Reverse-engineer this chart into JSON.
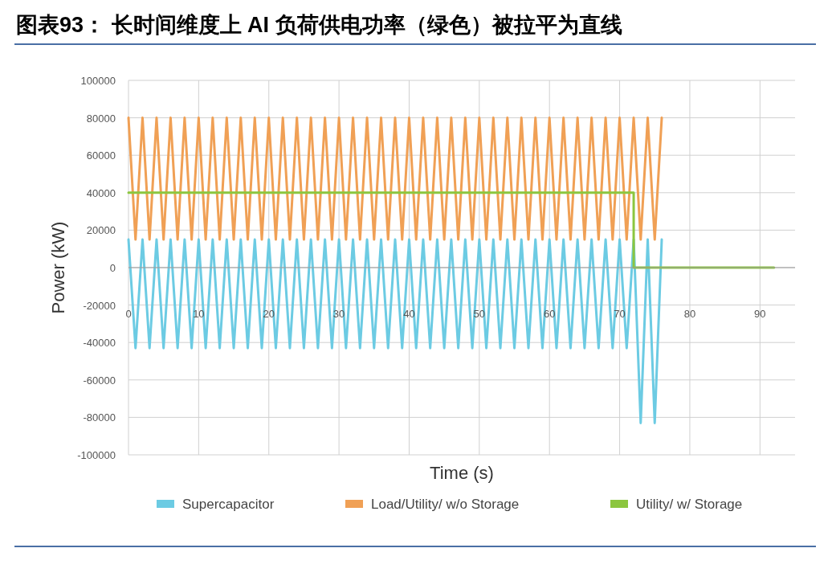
{
  "chart_data": {
    "type": "line",
    "title": "图表93：  长时间维度上 AI 负荷供电功率（绿色）被拉平为直线",
    "xlabel": "Time (s)",
    "ylabel": "Power (kW)",
    "xlim": [
      0,
      95
    ],
    "xticks": [
      0,
      10,
      20,
      30,
      40,
      50,
      60,
      70,
      80,
      90
    ],
    "ylim": [
      -100000,
      100000
    ],
    "yticks": [
      -100000,
      -80000,
      -60000,
      -40000,
      -20000,
      0,
      20000,
      40000,
      60000,
      80000,
      100000
    ],
    "grid": true,
    "legend": "bottom",
    "line_style": "solid",
    "marker": "none",
    "series": [
      {
        "name": "Supercapacitor",
        "color": "#6ccbe3",
        "x": [
          0,
          1,
          2,
          3,
          4,
          5,
          6,
          7,
          8,
          9,
          10,
          11,
          12,
          13,
          14,
          15,
          16,
          17,
          18,
          19,
          20,
          21,
          22,
          23,
          24,
          25,
          26,
          27,
          28,
          29,
          30,
          31,
          32,
          33,
          34,
          35,
          36,
          37,
          38,
          39,
          40,
          41,
          42,
          43,
          44,
          45,
          46,
          47,
          48,
          49,
          50,
          51,
          52,
          53,
          54,
          55,
          56,
          57,
          58,
          59,
          60,
          61,
          62,
          63,
          64,
          65,
          66,
          67,
          68,
          69,
          70,
          71,
          72,
          73,
          74,
          75,
          76
        ],
        "values": [
          15000,
          -43000,
          15000,
          -43000,
          15000,
          -43000,
          15000,
          -43000,
          15000,
          -43000,
          15000,
          -43000,
          15000,
          -43000,
          15000,
          -43000,
          15000,
          -43000,
          15000,
          -43000,
          15000,
          -43000,
          15000,
          -43000,
          15000,
          -43000,
          15000,
          -43000,
          15000,
          -43000,
          15000,
          -43000,
          15000,
          -43000,
          15000,
          -43000,
          15000,
          -43000,
          15000,
          -43000,
          15000,
          -43000,
          15000,
          -43000,
          15000,
          -43000,
          15000,
          -43000,
          15000,
          -43000,
          15000,
          -43000,
          15000,
          -43000,
          15000,
          -43000,
          15000,
          -43000,
          15000,
          -43000,
          15000,
          -43000,
          15000,
          -43000,
          15000,
          -43000,
          15000,
          -43000,
          15000,
          -43000,
          15000,
          -43000,
          15000,
          -83000,
          15000,
          -83000,
          15000
        ]
      },
      {
        "name": "Load/Utility/ w/o Storage",
        "color": "#f0a055",
        "x": [
          0,
          1,
          2,
          3,
          4,
          5,
          6,
          7,
          8,
          9,
          10,
          11,
          12,
          13,
          14,
          15,
          16,
          17,
          18,
          19,
          20,
          21,
          22,
          23,
          24,
          25,
          26,
          27,
          28,
          29,
          30,
          31,
          32,
          33,
          34,
          35,
          36,
          37,
          38,
          39,
          40,
          41,
          42,
          43,
          44,
          45,
          46,
          47,
          48,
          49,
          50,
          51,
          52,
          53,
          54,
          55,
          56,
          57,
          58,
          59,
          60,
          61,
          62,
          63,
          64,
          65,
          66,
          67,
          68,
          69,
          70,
          71,
          72,
          73,
          74,
          75,
          76
        ],
        "values": [
          80000,
          15000,
          80000,
          15000,
          80000,
          15000,
          80000,
          15000,
          80000,
          15000,
          80000,
          15000,
          80000,
          15000,
          80000,
          15000,
          80000,
          15000,
          80000,
          15000,
          80000,
          15000,
          80000,
          15000,
          80000,
          15000,
          80000,
          15000,
          80000,
          15000,
          80000,
          15000,
          80000,
          15000,
          80000,
          15000,
          80000,
          15000,
          80000,
          15000,
          80000,
          15000,
          80000,
          15000,
          80000,
          15000,
          80000,
          15000,
          80000,
          15000,
          80000,
          15000,
          80000,
          15000,
          80000,
          15000,
          80000,
          15000,
          80000,
          15000,
          80000,
          15000,
          80000,
          15000,
          80000,
          15000,
          80000,
          15000,
          80000,
          15000,
          80000,
          15000,
          80000,
          15000,
          80000,
          15000,
          80000
        ]
      },
      {
        "name": "Utility/ w/ Storage",
        "color": "#8cc63f",
        "x": [
          0,
          72,
          72,
          92
        ],
        "values": [
          40000,
          40000,
          0,
          0
        ]
      }
    ]
  }
}
